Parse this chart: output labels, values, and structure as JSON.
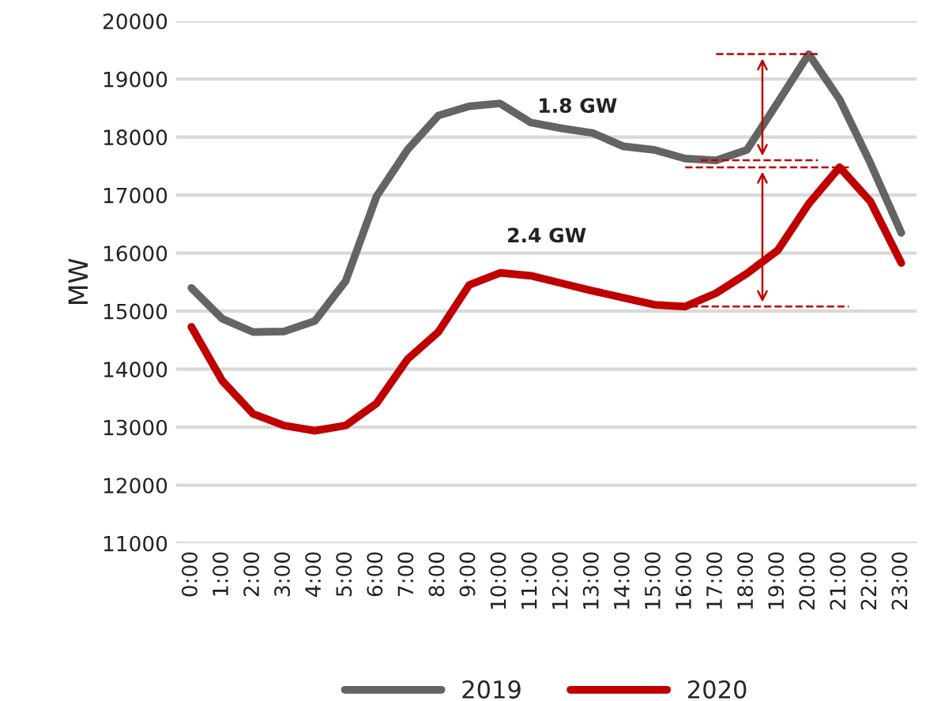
{
  "chart_data": {
    "type": "line",
    "ylabel": "MW",
    "categories": [
      "0:00",
      "1:00",
      "2:00",
      "3:00",
      "4:00",
      "5:00",
      "6:00",
      "7:00",
      "8:00",
      "9:00",
      "10:00",
      "11:00",
      "12:00",
      "13:00",
      "14:00",
      "15:00",
      "16:00",
      "17:00",
      "18:00",
      "19:00",
      "20:00",
      "21:00",
      "22:00",
      "23:00"
    ],
    "series": [
      {
        "name": "2019",
        "color": "#646464",
        "values": [
          15400,
          14870,
          14640,
          14650,
          14830,
          15520,
          16980,
          17780,
          18370,
          18530,
          18580,
          18250,
          18150,
          18070,
          17840,
          17780,
          17630,
          17600,
          17780,
          18600,
          19430,
          18650,
          17550,
          16350
        ]
      },
      {
        "name": "2020",
        "color": "#c00000",
        "values": [
          14730,
          13800,
          13230,
          13030,
          12940,
          13030,
          13410,
          14170,
          14640,
          15450,
          15660,
          15610,
          15480,
          15350,
          15230,
          15110,
          15080,
          15310,
          15650,
          16050,
          16850,
          17480,
          16890,
          15830
        ]
      }
    ],
    "annotations": [
      "1.8 GW",
      "2.4 GW"
    ],
    "ylim": [
      11000,
      20000
    ],
    "yticks": [
      11000,
      12000,
      13000,
      14000,
      15000,
      16000,
      17000,
      18000,
      19000,
      20000
    ],
    "grid": "y",
    "legend": "bottom",
    "line_style": "solid",
    "marker": "none"
  }
}
